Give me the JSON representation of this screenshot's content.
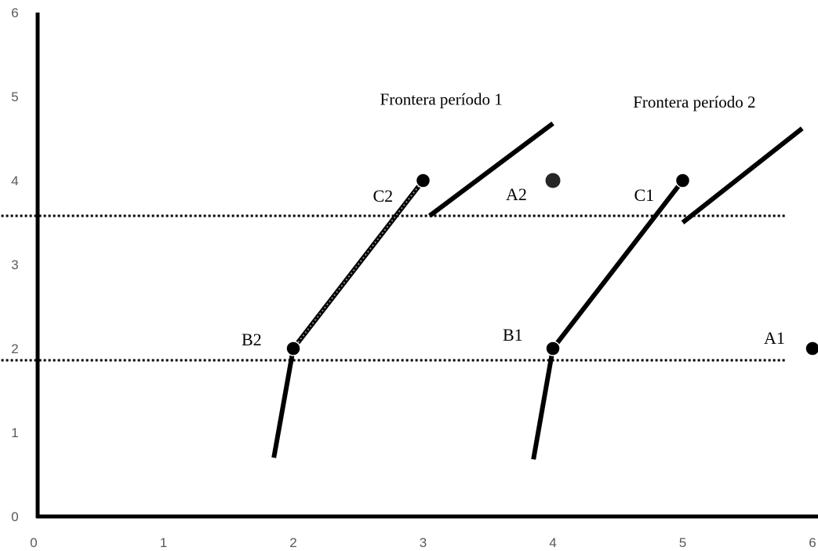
{
  "chart_data": {
    "type": "scatter",
    "title": "",
    "xlabel": "",
    "ylabel": "",
    "xlim": [
      0,
      6
    ],
    "ylim": [
      0,
      6
    ],
    "x_ticks": [
      "0",
      "1",
      "2",
      "3",
      "4",
      "5",
      "6"
    ],
    "y_ticks": [
      "0",
      "1",
      "2",
      "3",
      "4",
      "5",
      "6"
    ],
    "grid": false,
    "legend": "none",
    "colors": {
      "axis": "#000000",
      "tick_text": "#595959",
      "marks": "#000000",
      "frontier_1_highlight": "#8c8c8c"
    },
    "points": [
      {
        "label": "A1",
        "x": 6,
        "y": 2
      },
      {
        "label": "B1",
        "x": 4,
        "y": 2
      },
      {
        "label": "C1",
        "x": 5,
        "y": 4
      },
      {
        "label": "A2",
        "x": 4,
        "y": 4
      },
      {
        "label": "B2",
        "x": 2,
        "y": 2
      },
      {
        "label": "C2",
        "x": 3,
        "y": 4
      }
    ],
    "reference_lines": [
      {
        "style": "dotted",
        "y": 1.86,
        "x_from": -0.25,
        "x_to": 5.8
      },
      {
        "style": "dotted",
        "y": 3.58,
        "x_from": -0.25,
        "x_to": 5.8
      }
    ],
    "frontiers": [
      {
        "name": "Frontera período 1",
        "segments": [
          [
            [
              1.85,
              0.7
            ],
            [
              2,
              2
            ]
          ],
          [
            [
              2,
              2
            ],
            [
              3,
              4
            ]
          ],
          [
            [
              3.05,
              3.58
            ],
            [
              4,
              4.68
            ]
          ]
        ]
      },
      {
        "name": "Frontera período 2",
        "segments": [
          [
            [
              3.85,
              0.68
            ],
            [
              4,
              2
            ]
          ],
          [
            [
              4,
              2
            ],
            [
              5,
              4
            ]
          ],
          [
            [
              5,
              3.5
            ],
            [
              5.92,
              4.62
            ]
          ]
        ]
      }
    ],
    "annotations": [
      {
        "text": "Frontera período 1",
        "x": 3.14,
        "y": 4.9
      },
      {
        "text": "Frontera período 2",
        "x": 5.09,
        "y": 4.87
      }
    ]
  }
}
